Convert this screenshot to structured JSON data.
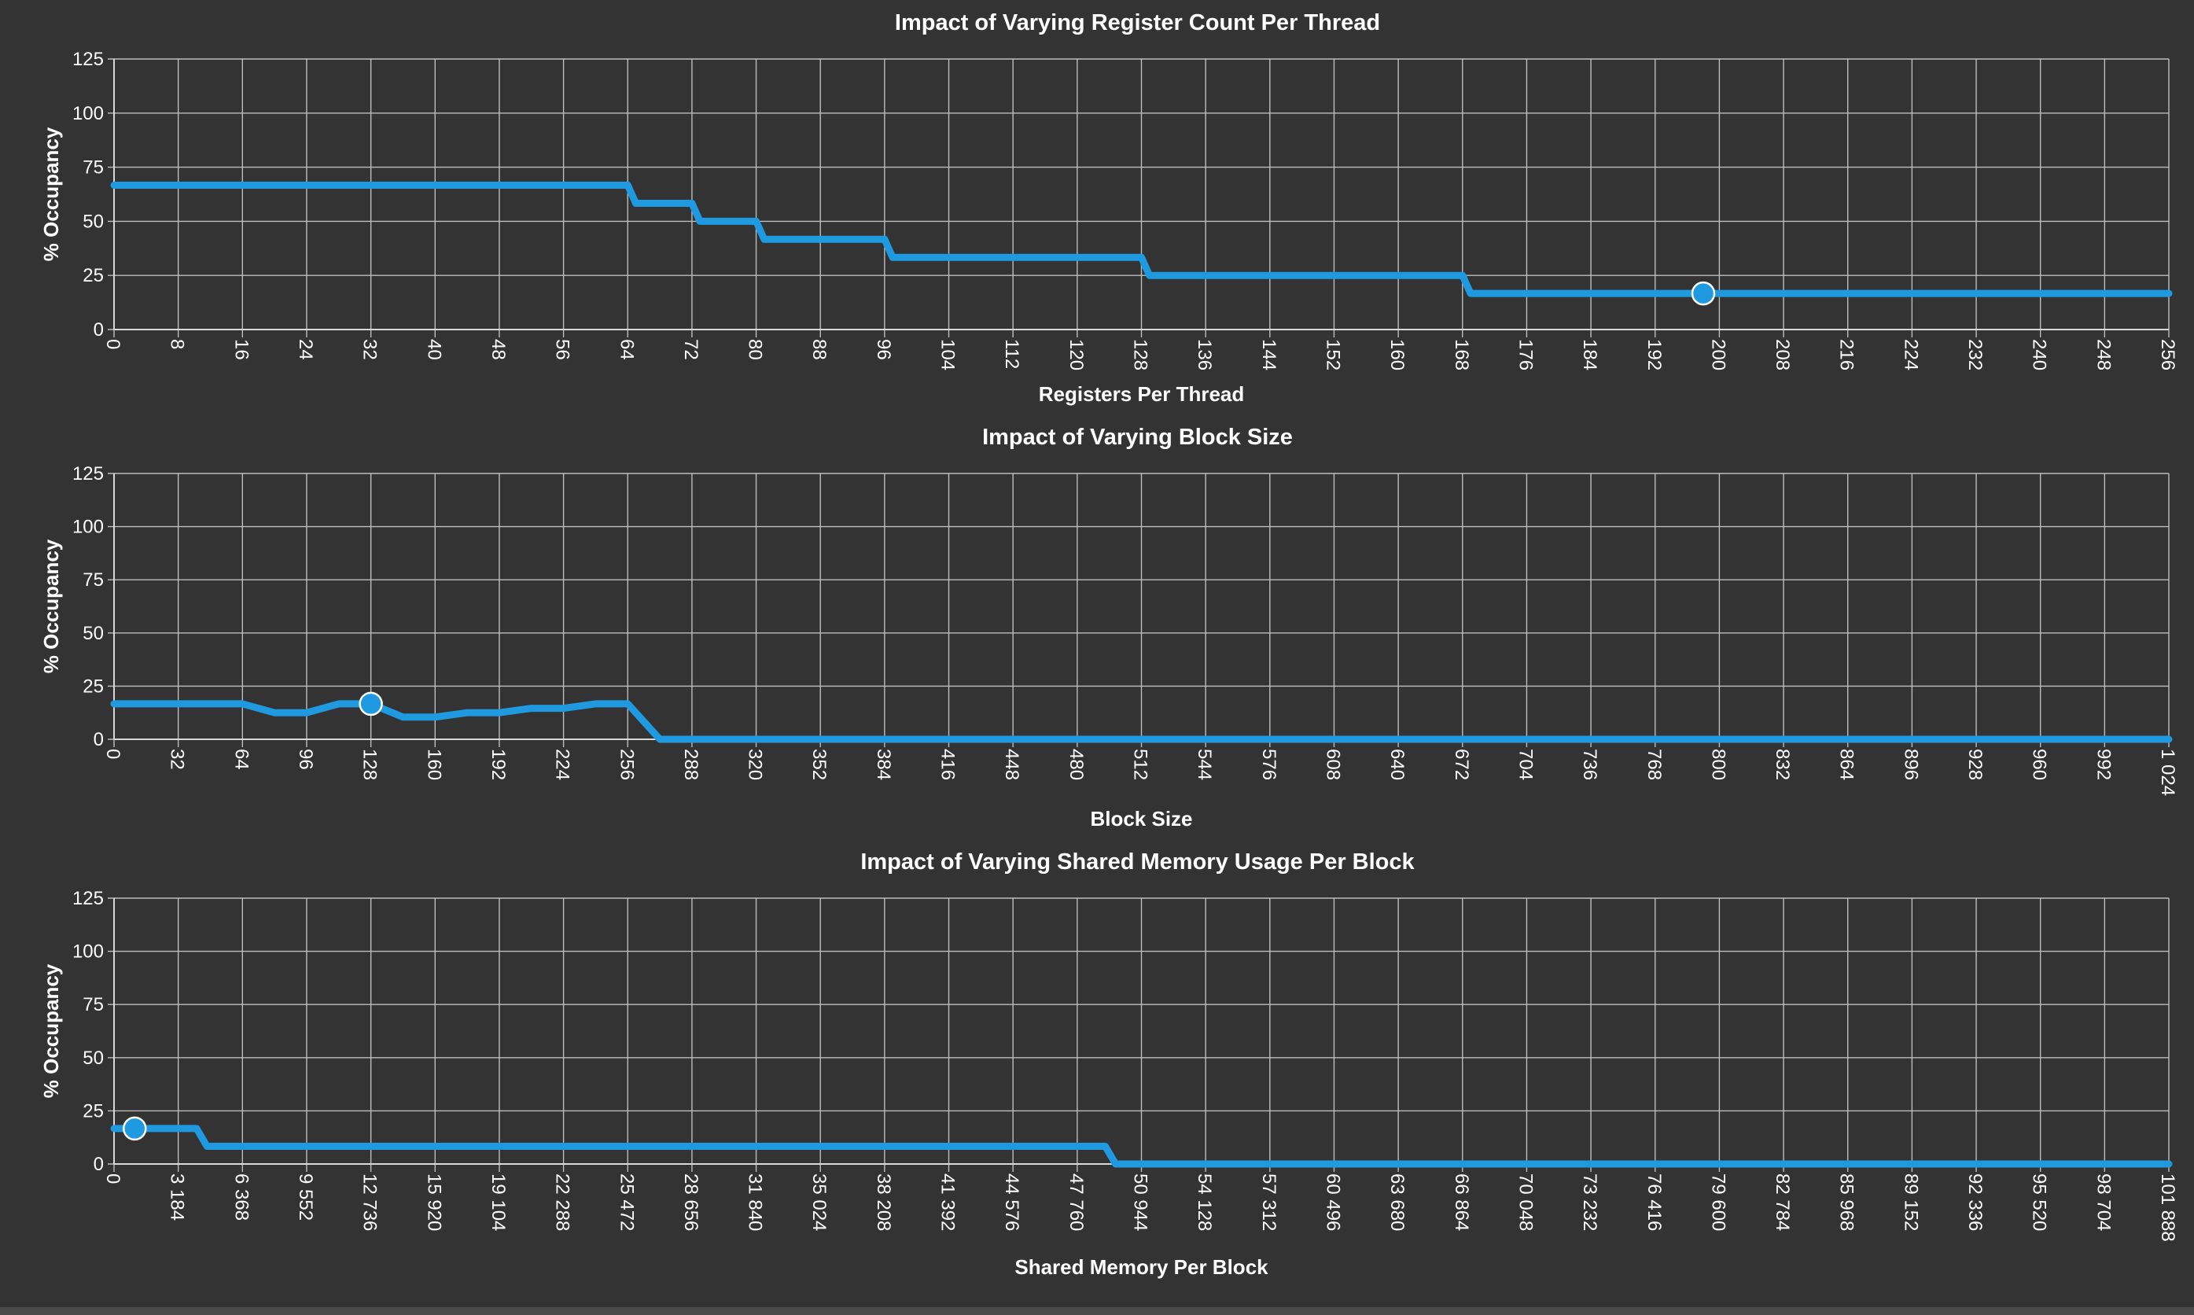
{
  "colors": {
    "background": "#333333",
    "series": "#1f9ae0",
    "grid": "#bdbdbd",
    "text": "#ffffff"
  },
  "chart_data": [
    {
      "type": "line",
      "title": "Impact of Varying Register Count Per Thread",
      "xlabel": "Registers Per Thread",
      "ylabel": "% Occupancy",
      "xlim": [
        0,
        256
      ],
      "ylim": [
        0,
        125
      ],
      "xticks": [
        0,
        8,
        16,
        24,
        32,
        40,
        48,
        56,
        64,
        72,
        80,
        88,
        96,
        104,
        112,
        120,
        128,
        136,
        144,
        152,
        160,
        168,
        176,
        184,
        192,
        200,
        208,
        216,
        224,
        232,
        240,
        248,
        256
      ],
      "xtick_labels": [
        "0",
        "8",
        "16",
        "24",
        "32",
        "40",
        "48",
        "56",
        "64",
        "72",
        "80",
        "88",
        "96",
        "104",
        "112",
        "120",
        "128",
        "136",
        "144",
        "152",
        "160",
        "168",
        "176",
        "184",
        "192",
        "200",
        "208",
        "216",
        "224",
        "232",
        "240",
        "248",
        "256"
      ],
      "yticks": [
        0,
        25,
        50,
        75,
        100,
        125
      ],
      "grid": true,
      "legend": "none",
      "series": [
        {
          "x": [
            0,
            64,
            65,
            72,
            73,
            80,
            81,
            96,
            97,
            128,
            129,
            168,
            169,
            256
          ],
          "y": [
            66.67,
            66.67,
            58.33,
            58.33,
            50,
            50,
            41.67,
            41.67,
            33.33,
            33.33,
            25,
            25,
            16.67,
            16.67
          ]
        }
      ],
      "marker": {
        "x": 198,
        "y": 16.67
      }
    },
    {
      "type": "line",
      "title": "Impact of Varying Block Size",
      "xlabel": "Block Size",
      "ylabel": "% Occupancy",
      "xlim": [
        0,
        1024
      ],
      "ylim": [
        0,
        125
      ],
      "xticks": [
        0,
        32,
        64,
        96,
        128,
        160,
        192,
        224,
        256,
        288,
        320,
        352,
        384,
        416,
        448,
        480,
        512,
        544,
        576,
        608,
        640,
        672,
        704,
        736,
        768,
        800,
        832,
        864,
        896,
        928,
        960,
        992,
        1024
      ],
      "xtick_labels": [
        "0",
        "32",
        "64",
        "96",
        "128",
        "160",
        "192",
        "224",
        "256",
        "288",
        "320",
        "352",
        "384",
        "416",
        "448",
        "480",
        "512",
        "544",
        "576",
        "608",
        "640",
        "672",
        "704",
        "736",
        "768",
        "800",
        "832",
        "864",
        "896",
        "928",
        "960",
        "992",
        "1 024"
      ],
      "yticks": [
        0,
        25,
        50,
        75,
        100,
        125
      ],
      "grid": true,
      "legend": "none",
      "series": [
        {
          "x": [
            0,
            64,
            80,
            96,
            112,
            128,
            144,
            160,
            176,
            192,
            208,
            224,
            240,
            256,
            272,
            1024
          ],
          "y": [
            16.67,
            16.67,
            12.5,
            12.5,
            16.67,
            16.67,
            10.42,
            10.42,
            12.5,
            12.5,
            14.58,
            14.58,
            16.67,
            16.67,
            0,
            0
          ]
        }
      ],
      "marker": {
        "x": 128,
        "y": 16.67
      }
    },
    {
      "type": "line",
      "title": "Impact of Varying Shared Memory Usage Per Block",
      "xlabel": "Shared Memory Per Block",
      "ylabel": "% Occupancy",
      "xlim": [
        0,
        101888
      ],
      "ylim": [
        0,
        125
      ],
      "xticks": [
        0,
        3184,
        6368,
        9552,
        12736,
        15920,
        19104,
        22288,
        25472,
        28656,
        31840,
        35024,
        38208,
        41392,
        44576,
        47760,
        50944,
        54128,
        57312,
        60496,
        63680,
        66864,
        70048,
        73232,
        76416,
        79600,
        82784,
        85968,
        89152,
        92336,
        95520,
        98704,
        101888
      ],
      "xtick_labels": [
        "0",
        "3 184",
        "6 368",
        "9 552",
        "12 736",
        "15 920",
        "19 104",
        "22 288",
        "25 472",
        "28 656",
        "31 840",
        "35 024",
        "38 208",
        "41 392",
        "44 576",
        "47 760",
        "50 944",
        "54 128",
        "57 312",
        "60 496",
        "63 680",
        "66 864",
        "70 048",
        "73 232",
        "76 416",
        "79 600",
        "82 784",
        "85 968",
        "89 152",
        "92 336",
        "95 520",
        "98 704",
        "101 888"
      ],
      "yticks": [
        0,
        25,
        50,
        75,
        100,
        125
      ],
      "grid": true,
      "legend": "none",
      "series": [
        {
          "x": [
            0,
            4096,
            4608,
            49152,
            49664,
            101888
          ],
          "y": [
            16.67,
            16.67,
            8.33,
            8.33,
            0,
            0
          ]
        }
      ],
      "marker": {
        "x": 1024,
        "y": 16.67
      }
    }
  ]
}
